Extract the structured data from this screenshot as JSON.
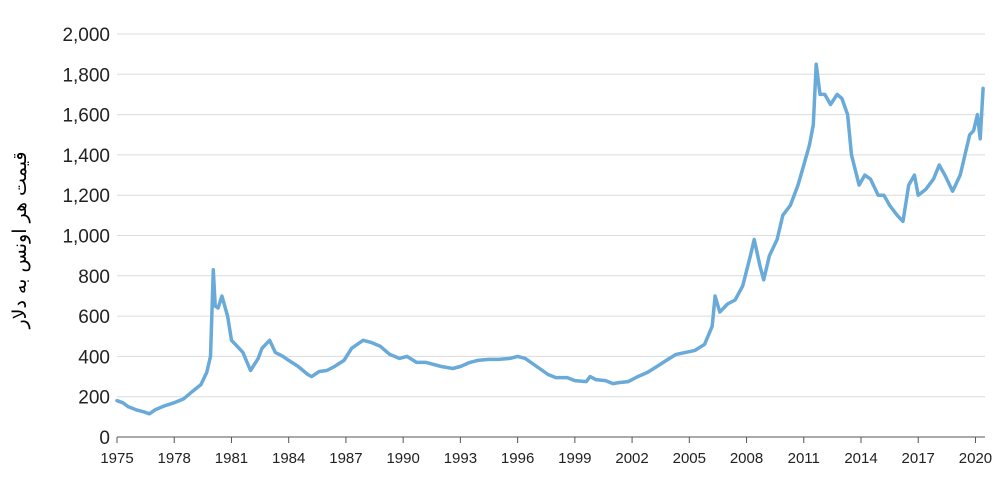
{
  "chart_data": {
    "type": "line",
    "title": "",
    "xlabel": "",
    "ylabel": "قیمت هر اونس به دلار",
    "xlim": [
      1975,
      2020.5
    ],
    "ylim": [
      0,
      2000
    ],
    "grid": "horizontal",
    "legend": "none",
    "line_color": "#6aaad9",
    "grid_color": "#dcdcdc",
    "x_ticks": [
      {
        "value": 1975,
        "label": "1975"
      },
      {
        "value": 1978,
        "label": "1978"
      },
      {
        "value": 1981,
        "label": "1981"
      },
      {
        "value": 1984,
        "label": "1984"
      },
      {
        "value": 1987,
        "label": "1987"
      },
      {
        "value": 1990,
        "label": "1990"
      },
      {
        "value": 1993,
        "label": "1993"
      },
      {
        "value": 1996,
        "label": "1996"
      },
      {
        "value": 1999,
        "label": "1999"
      },
      {
        "value": 2002,
        "label": "2002"
      },
      {
        "value": 2005,
        "label": "2005"
      },
      {
        "value": 2008,
        "label": "2008"
      },
      {
        "value": 2011,
        "label": "2011"
      },
      {
        "value": 2014,
        "label": "2014"
      },
      {
        "value": 2017,
        "label": "2017"
      },
      {
        "value": 2020,
        "label": "2020"
      }
    ],
    "y_ticks": [
      {
        "value": 0,
        "label": "0"
      },
      {
        "value": 200,
        "label": "200"
      },
      {
        "value": 400,
        "label": "400"
      },
      {
        "value": 600,
        "label": "600"
      },
      {
        "value": 800,
        "label": "800"
      },
      {
        "value": 1000,
        "label": "1,000"
      },
      {
        "value": 1200,
        "label": "1,200"
      },
      {
        "value": 1400,
        "label": "1,400"
      },
      {
        "value": 1600,
        "label": "1,600"
      },
      {
        "value": 1800,
        "label": "1,800"
      },
      {
        "value": 2000,
        "label": "2,000"
      }
    ],
    "series": [
      {
        "x": [
          1975.0,
          1975.3,
          1975.6,
          1976.0,
          1976.4,
          1976.7,
          1977.0,
          1977.5,
          1978.0,
          1978.5,
          1979.0,
          1979.4,
          1979.7,
          1979.9,
          1980.05,
          1980.15,
          1980.3,
          1980.5,
          1980.8,
          1981.0,
          1981.3,
          1981.6,
          1982.0,
          1982.4,
          1982.6,
          1983.0,
          1983.3,
          1983.7,
          1984.0,
          1984.5,
          1985.0,
          1985.2,
          1985.6,
          1986.0,
          1986.4,
          1986.9,
          1987.3,
          1987.9,
          1988.3,
          1988.8,
          1989.3,
          1989.8,
          1990.2,
          1990.7,
          1991.2,
          1992.0,
          1992.6,
          1993.0,
          1993.5,
          1993.9,
          1994.5,
          1995.0,
          1995.6,
          1996.0,
          1996.4,
          1997.0,
          1997.6,
          1998.0,
          1998.6,
          1999.0,
          1999.6,
          1999.8,
          2000.1,
          2000.6,
          2001.0,
          2001.3,
          2001.8,
          2002.3,
          2002.8,
          2003.3,
          2003.8,
          2004.3,
          2004.8,
          2005.3,
          2005.8,
          2006.2,
          2006.35,
          2006.6,
          2007.0,
          2007.4,
          2007.8,
          2008.2,
          2008.4,
          2008.7,
          2008.9,
          2009.2,
          2009.6,
          2009.9,
          2010.3,
          2010.7,
          2011.0,
          2011.3,
          2011.5,
          2011.65,
          2011.85,
          2012.1,
          2012.4,
          2012.75,
          2013.0,
          2013.3,
          2013.5,
          2013.9,
          2014.2,
          2014.5,
          2014.9,
          2015.2,
          2015.5,
          2015.9,
          2016.2,
          2016.5,
          2016.8,
          2017.0,
          2017.4,
          2017.8,
          2018.1,
          2018.4,
          2018.8,
          2019.2,
          2019.5,
          2019.7,
          2019.9,
          2020.1,
          2020.25,
          2020.4
        ],
        "y": [
          180,
          170,
          150,
          135,
          125,
          115,
          135,
          155,
          170,
          190,
          230,
          260,
          320,
          400,
          830,
          650,
          640,
          700,
          600,
          480,
          450,
          420,
          330,
          390,
          440,
          480,
          420,
          400,
          380,
          350,
          310,
          300,
          325,
          330,
          350,
          380,
          440,
          480,
          470,
          450,
          410,
          390,
          400,
          370,
          370,
          350,
          340,
          350,
          370,
          380,
          385,
          385,
          390,
          400,
          390,
          350,
          310,
          295,
          295,
          280,
          275,
          300,
          285,
          280,
          265,
          270,
          275,
          300,
          320,
          350,
          380,
          410,
          420,
          430,
          460,
          550,
          700,
          620,
          660,
          680,
          750,
          900,
          980,
          850,
          780,
          900,
          980,
          1100,
          1150,
          1250,
          1350,
          1450,
          1550,
          1850,
          1700,
          1700,
          1650,
          1700,
          1680,
          1600,
          1400,
          1250,
          1300,
          1280,
          1200,
          1200,
          1150,
          1100,
          1070,
          1250,
          1300,
          1200,
          1230,
          1280,
          1350,
          1300,
          1220,
          1300,
          1420,
          1500,
          1520,
          1600,
          1480,
          1730
        ]
      }
    ]
  }
}
